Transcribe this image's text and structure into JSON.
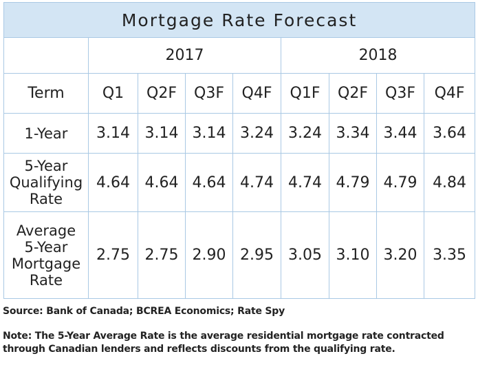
{
  "title": "Mortgage Rate Forecast",
  "years": [
    "2017",
    "2018"
  ],
  "header": {
    "term": "Term",
    "quarters": [
      "Q1",
      "Q2F",
      "Q3F",
      "Q4F",
      "Q1F",
      "Q2F",
      "Q3F",
      "Q4F"
    ]
  },
  "rows": [
    {
      "label_lines": [
        "1-Year"
      ],
      "values": [
        "3.14",
        "3.14",
        "3.14",
        "3.24",
        "3.24",
        "3.34",
        "3.44",
        "3.64"
      ]
    },
    {
      "label_lines": [
        "5-Year",
        "Qualifying",
        "Rate"
      ],
      "values": [
        "4.64",
        "4.64",
        "4.64",
        "4.74",
        "4.74",
        "4.79",
        "4.79",
        "4.84"
      ]
    },
    {
      "label_lines": [
        "Average",
        "5-Year",
        "Mortgage",
        "Rate"
      ],
      "values": [
        "2.75",
        "2.75",
        "2.90",
        "2.95",
        "3.05",
        "3.10",
        "3.20",
        "3.35"
      ]
    }
  ],
  "source": "Source: Bank of Canada; BCREA Economics; Rate Spy",
  "note_lines": [
    "Note: The 5-Year Average Rate is the average residential mortgage rate contracted",
    "through Canadian lenders and reflects discounts from the qualifying rate."
  ]
}
